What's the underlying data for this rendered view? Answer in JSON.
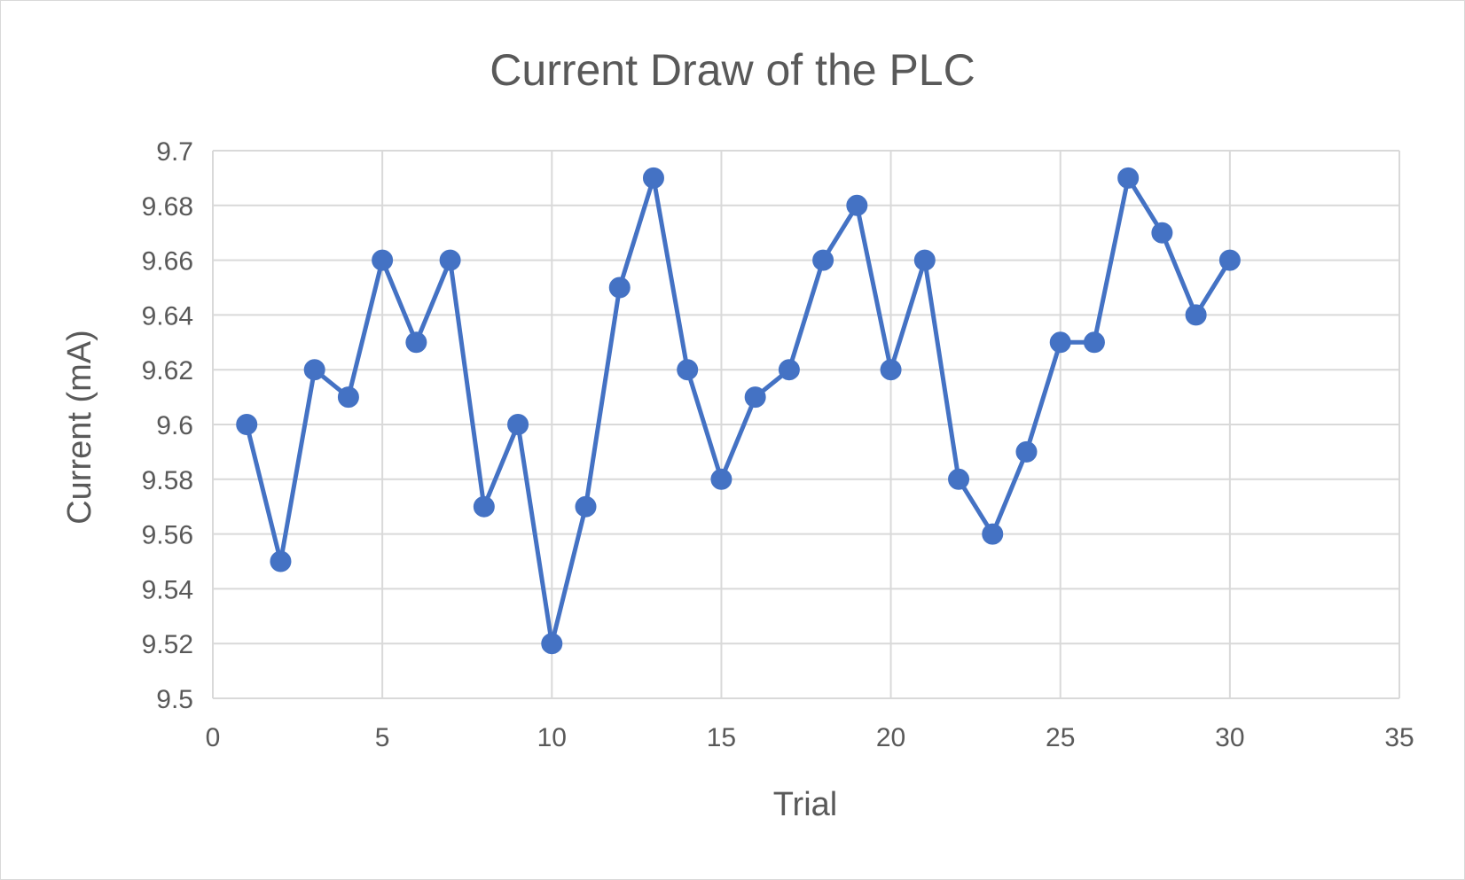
{
  "chart_data": {
    "type": "scatter",
    "title": "Current Draw of the PLC",
    "xlabel": "Trial",
    "ylabel": "Current (mA)",
    "xlim": [
      0,
      35
    ],
    "ylim": [
      9.5,
      9.7
    ],
    "xticks": [
      "0",
      "5",
      "10",
      "15",
      "20",
      "25",
      "30",
      "35"
    ],
    "yticks": [
      "9.5",
      "9.52",
      "9.54",
      "9.56",
      "9.58",
      "9.6",
      "9.62",
      "9.64",
      "9.66",
      "9.68",
      "9.7"
    ],
    "grid": true,
    "legend": "none",
    "color": "#4472c4",
    "x": [
      1,
      2,
      3,
      4,
      5,
      6,
      7,
      8,
      9,
      10,
      11,
      12,
      13,
      14,
      15,
      16,
      17,
      18,
      19,
      20,
      21,
      22,
      23,
      24,
      25,
      26,
      27,
      28,
      29,
      30
    ],
    "y": [
      9.6,
      9.55,
      9.62,
      9.61,
      9.66,
      9.63,
      9.66,
      9.57,
      9.6,
      9.52,
      9.57,
      9.65,
      9.69,
      9.62,
      9.58,
      9.61,
      9.62,
      9.66,
      9.68,
      9.62,
      9.66,
      9.58,
      9.56,
      9.59,
      9.63,
      9.63,
      9.69,
      9.67,
      9.64,
      9.66
    ]
  }
}
